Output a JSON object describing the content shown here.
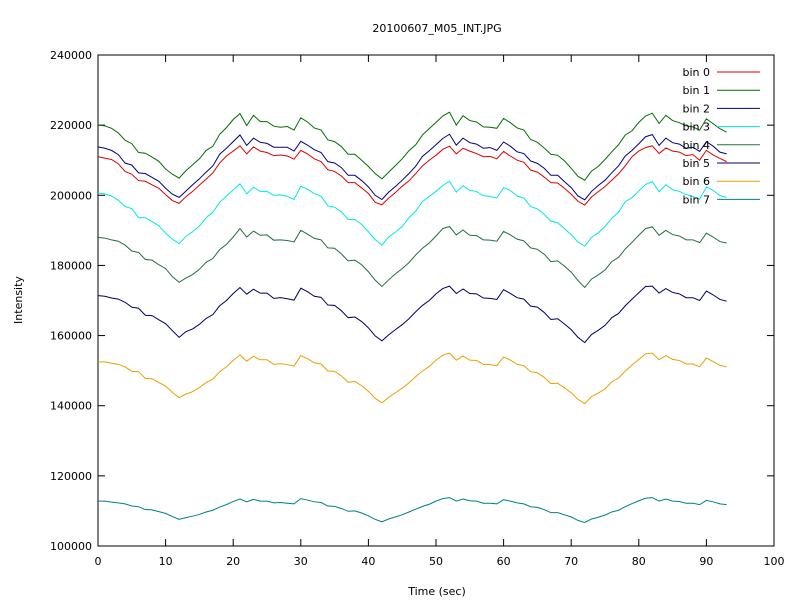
{
  "chart_data": {
    "type": "line",
    "title": "20100607_M05_INT.JPG",
    "xlabel": "Time (sec)",
    "ylabel": "Intensity",
    "xlim": [
      0,
      100
    ],
    "ylim": [
      100000,
      240000
    ],
    "xticks": [
      0,
      10,
      20,
      30,
      40,
      50,
      60,
      70,
      80,
      90,
      100
    ],
    "yticks": [
      100000,
      120000,
      140000,
      160000,
      180000,
      200000,
      220000,
      240000
    ],
    "xtick_labels": [
      "0",
      "10",
      "20",
      "30",
      "40",
      "50",
      "60",
      "70",
      "80",
      "90",
      "100"
    ],
    "ytick_labels": [
      "100000",
      "120000",
      "140000",
      "160000",
      "180000",
      "200000",
      "220000",
      "240000"
    ],
    "grid": false,
    "legend_position": "top-right",
    "x": [
      0,
      1,
      2,
      3,
      4,
      5,
      6,
      7,
      8,
      9,
      10,
      11,
      12,
      13,
      14,
      15,
      16,
      17,
      18,
      19,
      20,
      21,
      22,
      23,
      24,
      25,
      26,
      27,
      28,
      29,
      30,
      31,
      32,
      33,
      34,
      35,
      36,
      37,
      38,
      39,
      40,
      41,
      42,
      43,
      44,
      45,
      46,
      47,
      48,
      49,
      50,
      51,
      52,
      53,
      54,
      55,
      56,
      57,
      58,
      59,
      60,
      61,
      62,
      63,
      64,
      65,
      66,
      67,
      68,
      69,
      70,
      71,
      72,
      73,
      74,
      75,
      76,
      77,
      78,
      79,
      80,
      81,
      82,
      83,
      84,
      85,
      86,
      87,
      88,
      89,
      90,
      91,
      92,
      93
    ],
    "series": [
      {
        "name": "bin 0",
        "color": "#e00000",
        "values": [
          211000,
          210600,
          210200,
          209000,
          206800,
          206000,
          204200,
          204000,
          203000,
          202000,
          200200,
          198500,
          197700,
          199600,
          201100,
          202900,
          204600,
          206400,
          209200,
          211200,
          212600,
          214100,
          211800,
          213800,
          212600,
          212200,
          211300,
          211500,
          211200,
          210300,
          212800,
          211800,
          210400,
          209600,
          207300,
          206800,
          205500,
          203600,
          203600,
          202100,
          200500,
          198000,
          197300,
          199200,
          200800,
          202600,
          204100,
          206200,
          208400,
          210000,
          211400,
          213100,
          214000,
          211800,
          213400,
          212600,
          211900,
          211000,
          211100,
          210400,
          212500,
          211200,
          210000,
          209400,
          207200,
          206600,
          205200,
          203600,
          203500,
          202000,
          200300,
          198300,
          197200,
          199500,
          201000,
          202500,
          204300,
          206100,
          208400,
          211000,
          212600,
          213600,
          214100,
          211900,
          213500,
          212600,
          212300,
          211300,
          211600,
          210000,
          212800,
          211500,
          210500,
          209600
        ]
      },
      {
        "name": "bin 1",
        "color": "#007000",
        "values": [
          220000,
          219800,
          219100,
          217800,
          215700,
          214700,
          212200,
          212000,
          210900,
          209700,
          207500,
          206000,
          204900,
          207000,
          208700,
          210400,
          212800,
          214000,
          217400,
          219300,
          221600,
          223300,
          219900,
          222800,
          221000,
          221000,
          219700,
          219400,
          219600,
          218600,
          222100,
          220900,
          219200,
          218600,
          215800,
          215300,
          213900,
          211700,
          211700,
          210000,
          208200,
          206200,
          204700,
          206600,
          208500,
          210400,
          212700,
          214400,
          217200,
          219000,
          220800,
          222600,
          223700,
          220000,
          222700,
          221300,
          220900,
          219500,
          219400,
          219100,
          221900,
          220700,
          219200,
          218600,
          215900,
          215100,
          213500,
          211700,
          211400,
          209800,
          207700,
          205400,
          204300,
          206900,
          208200,
          210200,
          212400,
          214400,
          217200,
          218400,
          220800,
          222600,
          223400,
          220500,
          222800,
          221300,
          220700,
          219800,
          219500,
          218600,
          221800,
          220400,
          219000,
          218000
        ]
      },
      {
        "name": "bin 2",
        "color": "#000080",
        "values": [
          213800,
          213400,
          212800,
          211600,
          209200,
          208600,
          206400,
          206200,
          205100,
          204000,
          202000,
          200300,
          199400,
          201200,
          203000,
          204700,
          206600,
          208400,
          211700,
          213400,
          215300,
          217200,
          214200,
          216300,
          215100,
          214800,
          213700,
          213700,
          213700,
          212600,
          215400,
          214300,
          213000,
          212200,
          209600,
          209200,
          207900,
          205700,
          205700,
          204200,
          202400,
          200000,
          198800,
          200900,
          202500,
          204300,
          206200,
          208300,
          211100,
          212700,
          214400,
          216200,
          217400,
          214300,
          216300,
          215000,
          214600,
          213400,
          213600,
          212800,
          215200,
          214000,
          212400,
          211900,
          209800,
          209100,
          207700,
          205700,
          205700,
          203900,
          202200,
          199800,
          198700,
          201100,
          202800,
          204300,
          206400,
          208400,
          211200,
          212800,
          214700,
          216700,
          217300,
          214200,
          216300,
          215000,
          214600,
          213400,
          213700,
          212500,
          215300,
          214000,
          212300,
          211800
        ]
      },
      {
        "name": "bin 3",
        "color": "#00e8e8",
        "values": [
          200600,
          200400,
          199800,
          198600,
          196800,
          196200,
          193600,
          193600,
          192500,
          191300,
          189200,
          187500,
          186200,
          188300,
          189600,
          191200,
          193600,
          195200,
          198000,
          199800,
          201500,
          203300,
          200400,
          202300,
          201100,
          201100,
          200000,
          200100,
          199700,
          198800,
          202600,
          201700,
          200500,
          199700,
          197000,
          196600,
          195300,
          193100,
          193100,
          191700,
          189600,
          187400,
          185800,
          188100,
          189500,
          191100,
          193600,
          195500,
          198200,
          199700,
          201100,
          202800,
          204000,
          200900,
          202700,
          201400,
          201100,
          199900,
          199700,
          199200,
          202200,
          201400,
          199800,
          199200,
          196800,
          196100,
          194600,
          192600,
          192200,
          190500,
          188800,
          186700,
          185500,
          188000,
          189300,
          191100,
          193400,
          195200,
          198200,
          199300,
          201200,
          203100,
          203900,
          201000,
          203000,
          201600,
          201100,
          200200,
          199700,
          198900,
          202400,
          201400,
          199900,
          199400
        ]
      },
      {
        "name": "bin 4",
        "color": "#207040",
        "values": [
          188000,
          187800,
          187300,
          186900,
          185800,
          184100,
          183700,
          181700,
          181500,
          180200,
          179100,
          176800,
          175200,
          176400,
          177400,
          178900,
          180900,
          182000,
          184500,
          186000,
          188100,
          190500,
          188100,
          189800,
          188600,
          188700,
          187200,
          187300,
          187100,
          186700,
          190000,
          188900,
          187700,
          187300,
          185000,
          184900,
          183300,
          181300,
          181500,
          180200,
          178200,
          175800,
          174000,
          175900,
          177600,
          179100,
          180800,
          183000,
          184900,
          186400,
          188400,
          190500,
          191100,
          188700,
          190100,
          188600,
          188500,
          187300,
          187200,
          186900,
          189700,
          188700,
          187500,
          187000,
          185000,
          184600,
          183200,
          181100,
          181300,
          179800,
          178100,
          175700,
          173700,
          176100,
          177300,
          178700,
          181100,
          182300,
          184700,
          186600,
          188600,
          190500,
          191000,
          188600,
          190000,
          188800,
          188400,
          187300,
          187300,
          186500,
          189200,
          188100,
          186800,
          186400
        ]
      },
      {
        "name": "bin 5",
        "color": "#000060",
        "values": [
          171400,
          171200,
          170700,
          170400,
          169500,
          168100,
          167800,
          165800,
          165700,
          164500,
          163400,
          161400,
          159500,
          161100,
          161900,
          163200,
          164900,
          166000,
          168500,
          170000,
          172000,
          173700,
          171800,
          173200,
          172100,
          172100,
          170600,
          170800,
          170500,
          170100,
          173500,
          172500,
          171200,
          170900,
          168700,
          168600,
          167100,
          165100,
          165300,
          164000,
          162200,
          159900,
          158500,
          160200,
          161700,
          163100,
          164800,
          166800,
          168600,
          170000,
          171900,
          173400,
          174100,
          172000,
          173300,
          172000,
          171900,
          170700,
          170600,
          170300,
          173100,
          172000,
          170800,
          170400,
          168400,
          168100,
          166600,
          164600,
          164800,
          163300,
          161700,
          159500,
          158000,
          160300,
          161500,
          162900,
          165100,
          166300,
          168500,
          170400,
          172200,
          174000,
          174100,
          172100,
          173400,
          172300,
          171900,
          170800,
          170800,
          170000,
          172700,
          171600,
          170300,
          169800
        ]
      },
      {
        "name": "bin 6",
        "color": "#e8a000",
        "values": [
          152500,
          152500,
          152100,
          151800,
          151100,
          149800,
          149700,
          147800,
          147700,
          146600,
          145600,
          143800,
          142300,
          143300,
          144000,
          145200,
          146600,
          147600,
          149700,
          151100,
          152900,
          154500,
          152700,
          154100,
          153100,
          153100,
          151800,
          152000,
          151700,
          151300,
          154300,
          153400,
          152200,
          151900,
          149900,
          149800,
          148500,
          146700,
          146900,
          145700,
          144100,
          142100,
          140800,
          142400,
          143700,
          145000,
          146500,
          148300,
          149900,
          151200,
          153000,
          154400,
          155000,
          153000,
          154200,
          153000,
          152900,
          151800,
          151700,
          151400,
          153900,
          153000,
          151800,
          151400,
          149700,
          149400,
          148100,
          146300,
          146400,
          145100,
          143700,
          141800,
          140600,
          142600,
          143600,
          144800,
          146800,
          147900,
          149900,
          151600,
          153200,
          154800,
          155000,
          153100,
          154300,
          153200,
          152900,
          151900,
          151900,
          151100,
          153600,
          152600,
          151500,
          151100
        ]
      },
      {
        "name": "bin 7",
        "color": "#008080",
        "values": [
          112800,
          112800,
          112500,
          112300,
          112000,
          111400,
          111200,
          110400,
          110300,
          109800,
          109300,
          108400,
          107600,
          108100,
          108500,
          109000,
          109700,
          110200,
          111100,
          111800,
          112700,
          113400,
          112600,
          113300,
          112800,
          112800,
          112300,
          112400,
          112200,
          112000,
          113500,
          113100,
          112600,
          112400,
          111400,
          111300,
          110700,
          109900,
          110000,
          109400,
          108600,
          107600,
          106900,
          107700,
          108300,
          108900,
          109700,
          110500,
          111300,
          111900,
          112800,
          113500,
          113800,
          112800,
          113400,
          112900,
          112800,
          112200,
          112200,
          112000,
          113200,
          112800,
          112300,
          112000,
          111200,
          111000,
          110400,
          109500,
          109500,
          108900,
          108300,
          107300,
          106700,
          107700,
          108200,
          108800,
          109700,
          110200,
          111200,
          112100,
          112900,
          113600,
          113800,
          112800,
          113400,
          112800,
          112700,
          112200,
          112200,
          111800,
          113000,
          112600,
          112000,
          111800
        ]
      }
    ]
  }
}
